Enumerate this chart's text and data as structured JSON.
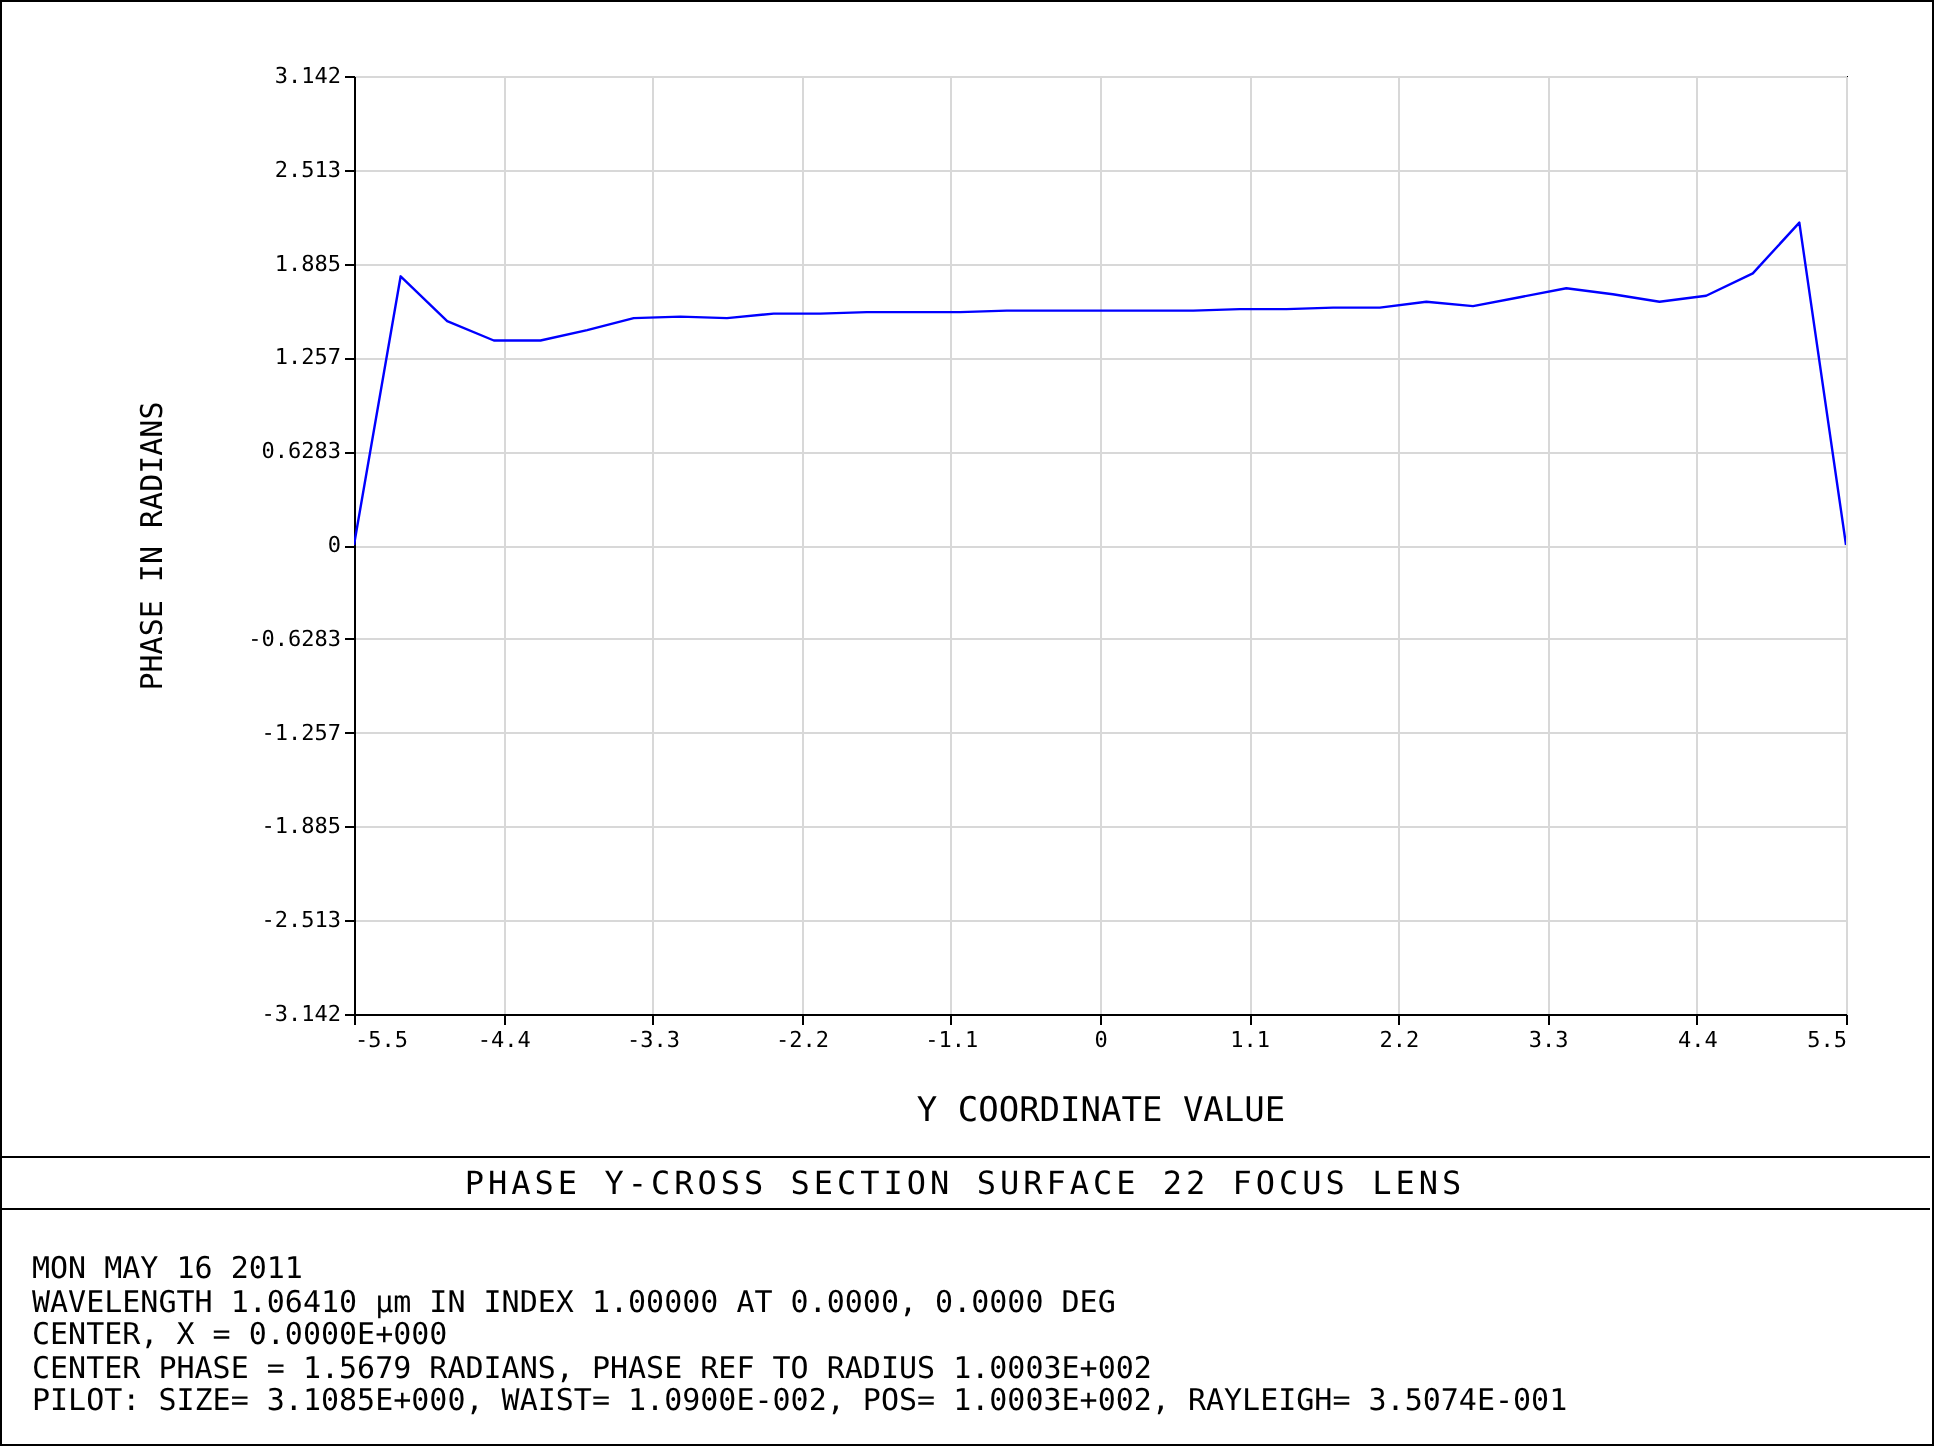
{
  "chart_data": {
    "type": "line",
    "title": "PHASE Y-CROSS SECTION SURFACE 22 FOCUS LENS",
    "xlabel": "Y COORDINATE VALUE",
    "ylabel": "PHASE IN RADIANS",
    "x": [
      -5.5,
      -5.156,
      -4.813,
      -4.469,
      -4.125,
      -3.781,
      -3.438,
      -3.094,
      -2.75,
      -2.406,
      -2.063,
      -1.719,
      -1.375,
      -1.031,
      -0.688,
      -0.344,
      0,
      0.344,
      0.688,
      1.031,
      1.375,
      1.719,
      2.063,
      2.406,
      2.75,
      3.094,
      3.438,
      3.781,
      4.125,
      4.469,
      4.813,
      5.156,
      5.5
    ],
    "series": [
      {
        "color": "#0000ff",
        "values": [
          0,
          1.8,
          1.5,
          1.37,
          1.37,
          1.44,
          1.52,
          1.53,
          1.52,
          1.55,
          1.55,
          1.56,
          1.56,
          1.56,
          1.57,
          1.57,
          1.57,
          1.57,
          1.57,
          1.58,
          1.58,
          1.59,
          1.59,
          1.63,
          1.6,
          1.66,
          1.72,
          1.68,
          1.63,
          1.67,
          1.82,
          2.16,
          0
        ]
      }
    ],
    "xlim": [
      -5.5,
      5.5
    ],
    "xticks": [
      -5.5,
      -4.4,
      -3.3,
      -2.2,
      -1.1,
      0,
      1.1,
      2.2,
      3.3,
      4.4,
      5.5
    ],
    "ylim": [
      -3.142,
      3.142
    ],
    "yticks": [
      -3.142,
      -2.513,
      -1.885,
      -1.257,
      -0.6283,
      0,
      0.6283,
      1.257,
      1.885,
      2.513,
      3.142
    ],
    "grid": true,
    "marker": "none",
    "line_style": "solid",
    "annotations": [
      "MON MAY 16 2011",
      "WAVELENGTH 1.06410 µm IN INDEX 1.00000 AT 0.0000, 0.0000 DEG",
      "CENTER, X = 0.0000E+000",
      "CENTER PHASE = 1.5679 RADIANS, PHASE REF TO RADIUS 1.0003E+002",
      "PILOT: SIZE= 3.1085E+000, WAIST= 1.0900E-002, POS= 1.0003E+002, RAYLEIGH= 3.5074E-001"
    ]
  }
}
